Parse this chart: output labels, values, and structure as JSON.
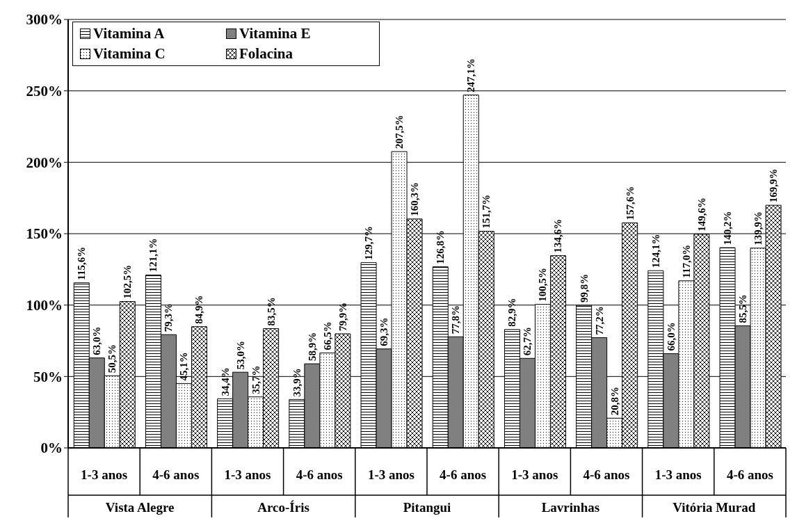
{
  "chart_data": {
    "type": "bar",
    "categories": [
      "1-3 anos",
      "4-6 anos",
      "1-3 anos",
      "4-6 anos",
      "1-3 anos",
      "4-6 anos",
      "1-3 anos",
      "4-6 anos",
      "1-3 anos",
      "4-6 anos"
    ],
    "annotations": [
      "Vista Alegre",
      "Arco-Íris",
      "Pitangui",
      "Lavrinhas",
      "Vitória Murad"
    ],
    "series": [
      {
        "name": "Vitamina A",
        "color": "#000000",
        "values": [
          115.6,
          121.1,
          34.4,
          33.9,
          129.7,
          126.8,
          82.9,
          99.8,
          124.1,
          140.2
        ],
        "value_labels": [
          "115,6%",
          "121,1%",
          "34,4%",
          "33,9%",
          "129,7%",
          "126,8%",
          "82,9%",
          "99,8%",
          "124,1%",
          "140,2%"
        ]
      },
      {
        "name": "Vitamina E",
        "color": "#808080",
        "values": [
          63.0,
          79.3,
          53.0,
          58.9,
          69.3,
          77.8,
          62.7,
          77.2,
          66.0,
          85.5
        ],
        "value_labels": [
          "63,0%",
          "79,3%",
          "53,0%",
          "58,9%",
          "69,3%",
          "77,8%",
          "62,7%",
          "77,2%",
          "66,0%",
          "85,5%"
        ]
      },
      {
        "name": "Vitamina C",
        "color": "#000000",
        "values": [
          50.5,
          45.1,
          35.7,
          66.5,
          207.5,
          247.1,
          100.5,
          20.8,
          117.0,
          139.9
        ],
        "value_labels": [
          "50,5%",
          "45,1%",
          "35,7%",
          "66,5%",
          "207,5%",
          "247,1%",
          "100,5%",
          "20,8%",
          "117,0%",
          "139,9%"
        ]
      },
      {
        "name": "Folacina",
        "color": "#000000",
        "values": [
          102.5,
          84.9,
          83.5,
          79.9,
          160.3,
          151.7,
          134.6,
          157.6,
          149.6,
          169.9
        ],
        "value_labels": [
          "102,5%",
          "84,9%",
          "83,5%",
          "79,9%",
          "160,3%",
          "151,7%",
          "134,6%",
          "157,6%",
          "149,6%",
          "169,9%"
        ]
      }
    ],
    "ylim": [
      0,
      300
    ],
    "yticks": [
      {
        "value": 0,
        "label": "0%"
      },
      {
        "value": 50,
        "label": "50%"
      },
      {
        "value": 100,
        "label": "100%"
      },
      {
        "value": 150,
        "label": "150%"
      },
      {
        "value": 200,
        "label": "200%"
      },
      {
        "value": 250,
        "label": "250%"
      },
      {
        "value": 300,
        "label": "300%"
      }
    ],
    "grid": "y",
    "legend": "top left"
  }
}
